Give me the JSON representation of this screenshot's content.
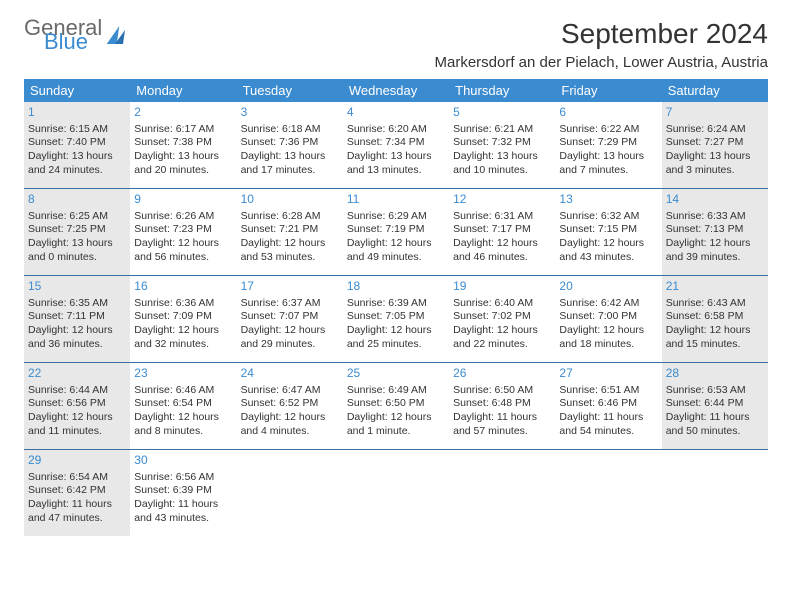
{
  "logo": {
    "text1": "General",
    "text2": "Blue"
  },
  "title": "September 2024",
  "location": "Markersdorf an der Pielach, Lower Austria, Austria",
  "colors": {
    "header_bg": "#3b8bd0",
    "header_text": "#ffffff",
    "shaded_bg": "#e8e8e8",
    "border": "#3b6fa0",
    "daynum": "#3b8bd0",
    "text": "#333333"
  },
  "dayNames": [
    "Sunday",
    "Monday",
    "Tuesday",
    "Wednesday",
    "Thursday",
    "Friday",
    "Saturday"
  ],
  "weeks": [
    [
      {
        "shaded": true,
        "num": "1",
        "sunrise": "6:15 AM",
        "sunset": "7:40 PM",
        "daylight": "13 hours and 24 minutes."
      },
      {
        "shaded": false,
        "num": "2",
        "sunrise": "6:17 AM",
        "sunset": "7:38 PM",
        "daylight": "13 hours and 20 minutes."
      },
      {
        "shaded": false,
        "num": "3",
        "sunrise": "6:18 AM",
        "sunset": "7:36 PM",
        "daylight": "13 hours and 17 minutes."
      },
      {
        "shaded": false,
        "num": "4",
        "sunrise": "6:20 AM",
        "sunset": "7:34 PM",
        "daylight": "13 hours and 13 minutes."
      },
      {
        "shaded": false,
        "num": "5",
        "sunrise": "6:21 AM",
        "sunset": "7:32 PM",
        "daylight": "13 hours and 10 minutes."
      },
      {
        "shaded": false,
        "num": "6",
        "sunrise": "6:22 AM",
        "sunset": "7:29 PM",
        "daylight": "13 hours and 7 minutes."
      },
      {
        "shaded": true,
        "num": "7",
        "sunrise": "6:24 AM",
        "sunset": "7:27 PM",
        "daylight": "13 hours and 3 minutes."
      }
    ],
    [
      {
        "shaded": true,
        "num": "8",
        "sunrise": "6:25 AM",
        "sunset": "7:25 PM",
        "daylight": "13 hours and 0 minutes."
      },
      {
        "shaded": false,
        "num": "9",
        "sunrise": "6:26 AM",
        "sunset": "7:23 PM",
        "daylight": "12 hours and 56 minutes."
      },
      {
        "shaded": false,
        "num": "10",
        "sunrise": "6:28 AM",
        "sunset": "7:21 PM",
        "daylight": "12 hours and 53 minutes."
      },
      {
        "shaded": false,
        "num": "11",
        "sunrise": "6:29 AM",
        "sunset": "7:19 PM",
        "daylight": "12 hours and 49 minutes."
      },
      {
        "shaded": false,
        "num": "12",
        "sunrise": "6:31 AM",
        "sunset": "7:17 PM",
        "daylight": "12 hours and 46 minutes."
      },
      {
        "shaded": false,
        "num": "13",
        "sunrise": "6:32 AM",
        "sunset": "7:15 PM",
        "daylight": "12 hours and 43 minutes."
      },
      {
        "shaded": true,
        "num": "14",
        "sunrise": "6:33 AM",
        "sunset": "7:13 PM",
        "daylight": "12 hours and 39 minutes."
      }
    ],
    [
      {
        "shaded": true,
        "num": "15",
        "sunrise": "6:35 AM",
        "sunset": "7:11 PM",
        "daylight": "12 hours and 36 minutes."
      },
      {
        "shaded": false,
        "num": "16",
        "sunrise": "6:36 AM",
        "sunset": "7:09 PM",
        "daylight": "12 hours and 32 minutes."
      },
      {
        "shaded": false,
        "num": "17",
        "sunrise": "6:37 AM",
        "sunset": "7:07 PM",
        "daylight": "12 hours and 29 minutes."
      },
      {
        "shaded": false,
        "num": "18",
        "sunrise": "6:39 AM",
        "sunset": "7:05 PM",
        "daylight": "12 hours and 25 minutes."
      },
      {
        "shaded": false,
        "num": "19",
        "sunrise": "6:40 AM",
        "sunset": "7:02 PM",
        "daylight": "12 hours and 22 minutes."
      },
      {
        "shaded": false,
        "num": "20",
        "sunrise": "6:42 AM",
        "sunset": "7:00 PM",
        "daylight": "12 hours and 18 minutes."
      },
      {
        "shaded": true,
        "num": "21",
        "sunrise": "6:43 AM",
        "sunset": "6:58 PM",
        "daylight": "12 hours and 15 minutes."
      }
    ],
    [
      {
        "shaded": true,
        "num": "22",
        "sunrise": "6:44 AM",
        "sunset": "6:56 PM",
        "daylight": "12 hours and 11 minutes."
      },
      {
        "shaded": false,
        "num": "23",
        "sunrise": "6:46 AM",
        "sunset": "6:54 PM",
        "daylight": "12 hours and 8 minutes."
      },
      {
        "shaded": false,
        "num": "24",
        "sunrise": "6:47 AM",
        "sunset": "6:52 PM",
        "daylight": "12 hours and 4 minutes."
      },
      {
        "shaded": false,
        "num": "25",
        "sunrise": "6:49 AM",
        "sunset": "6:50 PM",
        "daylight": "12 hours and 1 minute."
      },
      {
        "shaded": false,
        "num": "26",
        "sunrise": "6:50 AM",
        "sunset": "6:48 PM",
        "daylight": "11 hours and 57 minutes."
      },
      {
        "shaded": false,
        "num": "27",
        "sunrise": "6:51 AM",
        "sunset": "6:46 PM",
        "daylight": "11 hours and 54 minutes."
      },
      {
        "shaded": true,
        "num": "28",
        "sunrise": "6:53 AM",
        "sunset": "6:44 PM",
        "daylight": "11 hours and 50 minutes."
      }
    ],
    [
      {
        "shaded": true,
        "num": "29",
        "sunrise": "6:54 AM",
        "sunset": "6:42 PM",
        "daylight": "11 hours and 47 minutes."
      },
      {
        "shaded": false,
        "num": "30",
        "sunrise": "6:56 AM",
        "sunset": "6:39 PM",
        "daylight": "11 hours and 43 minutes."
      },
      null,
      null,
      null,
      null,
      null
    ]
  ],
  "labels": {
    "sunrise": "Sunrise: ",
    "sunset": "Sunset: ",
    "daylight": "Daylight: "
  }
}
